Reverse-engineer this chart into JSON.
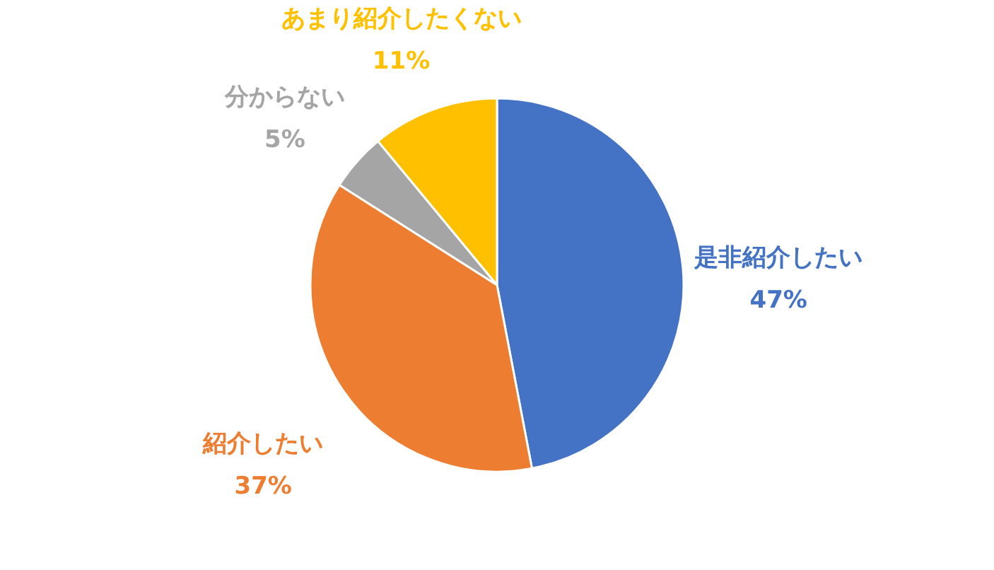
{
  "chart_data": {
    "type": "pie",
    "categories": [
      "是非紹介したい",
      "紹介したい",
      "分からない",
      "あまり紹介したくない"
    ],
    "values": [
      47,
      37,
      5,
      11
    ],
    "colors": [
      "#4472c4",
      "#ed7d31",
      "#a5a5a5",
      "#ffc000"
    ],
    "value_labels": [
      "47%",
      "37%",
      "5%",
      "11%"
    ]
  }
}
